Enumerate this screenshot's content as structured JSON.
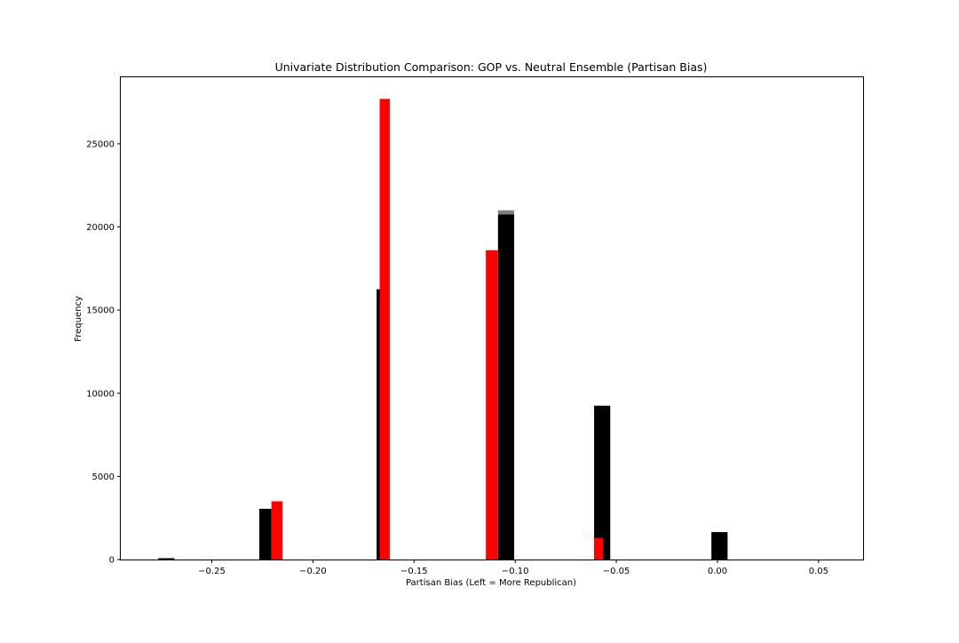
{
  "chart_data": {
    "type": "bar",
    "title": "Univariate Distribution Comparison: GOP vs. Neutral Ensemble (Partisan Bias)",
    "xlabel": "Partisan Bias (Left = More Republican)",
    "ylabel": "Frequency",
    "xlim": [
      -0.295,
      0.072
    ],
    "ylim": [
      0,
      29000
    ],
    "xticks": [
      -0.25,
      -0.2,
      -0.15,
      -0.1,
      -0.05,
      0.0,
      0.05
    ],
    "xtick_labels": [
      "−0.25",
      "−0.20",
      "−0.15",
      "−0.10",
      "−0.05",
      "0.00",
      "0.05"
    ],
    "yticks": [
      0,
      5000,
      10000,
      15000,
      20000,
      25000
    ],
    "ytick_labels": [
      "0",
      "5000",
      "10000",
      "15000",
      "20000",
      "25000"
    ],
    "grid": false,
    "series": [
      {
        "color": "#000000",
        "bars": [
          {
            "x0": -0.2765,
            "x1": -0.2685,
            "value": 80
          },
          {
            "x0": -0.2265,
            "x1": -0.2205,
            "value": 3050
          },
          {
            "x0": -0.1685,
            "x1": -0.165,
            "value": 16250
          },
          {
            "x0": -0.1085,
            "x1": -0.1005,
            "value": 20750
          },
          {
            "x0": -0.061,
            "x1": -0.053,
            "value": 9250
          },
          {
            "x0": -0.003,
            "x1": 0.005,
            "value": 1650
          }
        ]
      },
      {
        "color": "#ff0000",
        "bars": [
          {
            "x0": -0.2205,
            "x1": -0.215,
            "value": 3500
          },
          {
            "x0": -0.167,
            "x1": -0.162,
            "value": 27700
          },
          {
            "x0": -0.1145,
            "x1": -0.1085,
            "value": 18600
          },
          {
            "x0": -0.061,
            "x1": -0.0565,
            "value": 1300
          }
        ]
      },
      {
        "color": "#808080",
        "bars": [
          {
            "x0": -0.1085,
            "x1": -0.1005,
            "value": 21000,
            "base": 20750
          }
        ]
      }
    ]
  }
}
